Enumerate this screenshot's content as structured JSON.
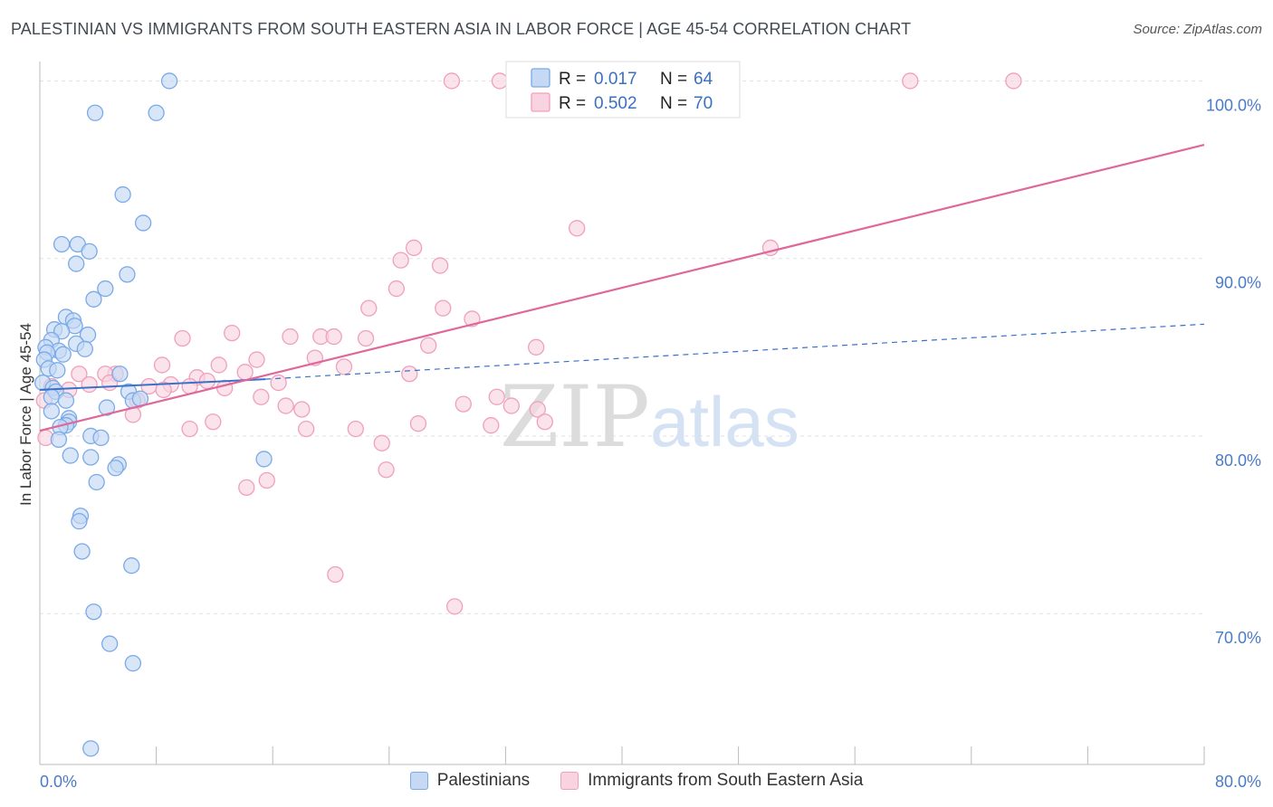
{
  "title": "PALESTINIAN VS IMMIGRANTS FROM SOUTH EASTERN ASIA IN LABOR FORCE | AGE 45-54 CORRELATION CHART",
  "source": "Source: ZipAtlas.com",
  "watermark": {
    "zip": "ZIP",
    "atlas": "atlas"
  },
  "colors": {
    "blue": "#7aaae8",
    "blue_fill": "#c5d9f5",
    "blue_line": "#3a70c8",
    "pink": "#f0a0bb",
    "pink_fill": "#f9d4e0",
    "pink_line": "#e0679a",
    "tick": "#4a7bc8"
  },
  "chart_data": {
    "type": "scatter",
    "xlabel": "",
    "ylabel": "In Labor Force | Age 45-54",
    "xlim": [
      0,
      80
    ],
    "ylim": [
      61.5,
      101.5
    ],
    "x_tick_labels": [
      "0.0%",
      "80.0%"
    ],
    "y_ticks": [
      70,
      80,
      90,
      100
    ],
    "y_tick_labels": [
      "70.0%",
      "80.0%",
      "90.0%",
      "100.0%"
    ],
    "grid": true,
    "legend": {
      "position": "top-center",
      "entries": [
        {
          "series": "Palestinians",
          "r_label": "R =",
          "r": "0.017",
          "n_label": "N =",
          "n": "64"
        },
        {
          "series": "Immigrants from South Eastern Asia",
          "r_label": "R =",
          "r": "0.502",
          "n_label": "N =",
          "n": "70"
        }
      ]
    },
    "series": [
      {
        "name": "Palestinians",
        "color": "#7aaae8",
        "trend": {
          "x": [
            0,
            15.5
          ],
          "y": [
            82.6,
            83.2
          ],
          "dashed_to_x": 80,
          "dashed_to_y": 86.3
        },
        "points": [
          [
            8.9,
            100.0
          ],
          [
            3.8,
            98.2
          ],
          [
            8.0,
            98.2
          ],
          [
            5.7,
            93.6
          ],
          [
            7.1,
            92.0
          ],
          [
            1.5,
            90.8
          ],
          [
            2.6,
            90.8
          ],
          [
            3.4,
            90.4
          ],
          [
            2.5,
            89.7
          ],
          [
            6.0,
            89.1
          ],
          [
            4.5,
            88.3
          ],
          [
            3.7,
            87.7
          ],
          [
            1.8,
            86.7
          ],
          [
            2.3,
            86.5
          ],
          [
            1.0,
            86.0
          ],
          [
            2.4,
            86.2
          ],
          [
            1.5,
            85.9
          ],
          [
            3.3,
            85.7
          ],
          [
            0.8,
            85.4
          ],
          [
            2.5,
            85.2
          ],
          [
            0.4,
            85.0
          ],
          [
            1.3,
            84.8
          ],
          [
            3.1,
            84.9
          ],
          [
            0.5,
            84.7
          ],
          [
            1.6,
            84.6
          ],
          [
            0.3,
            84.3
          ],
          [
            0.6,
            83.8
          ],
          [
            1.2,
            83.7
          ],
          [
            5.5,
            83.5
          ],
          [
            0.2,
            83.0
          ],
          [
            0.9,
            82.7
          ],
          [
            1.1,
            82.5
          ],
          [
            6.1,
            82.5
          ],
          [
            0.8,
            82.2
          ],
          [
            1.8,
            82.0
          ],
          [
            6.4,
            82.0
          ],
          [
            6.9,
            82.1
          ],
          [
            4.6,
            81.6
          ],
          [
            0.8,
            81.4
          ],
          [
            2.0,
            81.0
          ],
          [
            2.0,
            80.8
          ],
          [
            1.8,
            80.6
          ],
          [
            1.4,
            80.5
          ],
          [
            3.5,
            80.0
          ],
          [
            4.2,
            79.9
          ],
          [
            1.3,
            79.8
          ],
          [
            2.1,
            78.9
          ],
          [
            3.5,
            78.8
          ],
          [
            15.4,
            78.7
          ],
          [
            5.4,
            78.4
          ],
          [
            5.2,
            78.2
          ],
          [
            3.9,
            77.4
          ],
          [
            2.8,
            75.5
          ],
          [
            2.7,
            75.2
          ],
          [
            2.9,
            73.5
          ],
          [
            6.3,
            72.7
          ],
          [
            3.7,
            70.1
          ],
          [
            4.8,
            68.3
          ],
          [
            6.4,
            67.2
          ],
          [
            3.5,
            62.4
          ]
        ]
      },
      {
        "name": "Immigrants from South Eastern Asia",
        "color": "#f0a0bb",
        "trend": {
          "x": [
            0,
            80
          ],
          "y": [
            80.3,
            96.4
          ]
        },
        "points": [
          [
            28.3,
            100.0
          ],
          [
            31.6,
            100.0
          ],
          [
            59.8,
            100.0
          ],
          [
            66.9,
            100.0
          ],
          [
            36.9,
            91.7
          ],
          [
            50.2,
            90.6
          ],
          [
            25.7,
            90.6
          ],
          [
            24.8,
            89.9
          ],
          [
            27.5,
            89.6
          ],
          [
            24.5,
            88.3
          ],
          [
            22.6,
            87.2
          ],
          [
            27.7,
            87.2
          ],
          [
            29.7,
            86.6
          ],
          [
            13.2,
            85.8
          ],
          [
            17.2,
            85.6
          ],
          [
            19.3,
            85.6
          ],
          [
            20.2,
            85.6
          ],
          [
            22.4,
            85.5
          ],
          [
            9.8,
            85.5
          ],
          [
            26.7,
            85.1
          ],
          [
            34.1,
            85.0
          ],
          [
            14.9,
            84.3
          ],
          [
            18.9,
            84.4
          ],
          [
            8.4,
            84.0
          ],
          [
            12.3,
            84.0
          ],
          [
            20.9,
            83.9
          ],
          [
            14.1,
            83.6
          ],
          [
            25.4,
            83.5
          ],
          [
            5.2,
            83.5
          ],
          [
            2.7,
            83.5
          ],
          [
            4.5,
            83.5
          ],
          [
            10.8,
            83.3
          ],
          [
            11.5,
            83.1
          ],
          [
            16.4,
            83.0
          ],
          [
            4.8,
            83.0
          ],
          [
            3.4,
            82.9
          ],
          [
            0.8,
            82.8
          ],
          [
            9.0,
            82.9
          ],
          [
            10.3,
            82.8
          ],
          [
            7.5,
            82.8
          ],
          [
            12.7,
            82.7
          ],
          [
            8.5,
            82.6
          ],
          [
            2.0,
            82.6
          ],
          [
            31.4,
            82.2
          ],
          [
            15.2,
            82.2
          ],
          [
            0.3,
            82.0
          ],
          [
            6.7,
            82.0
          ],
          [
            29.1,
            81.8
          ],
          [
            32.4,
            81.7
          ],
          [
            16.9,
            81.7
          ],
          [
            18.0,
            81.5
          ],
          [
            34.2,
            81.5
          ],
          [
            6.4,
            81.2
          ],
          [
            34.7,
            80.8
          ],
          [
            11.9,
            80.8
          ],
          [
            26.0,
            80.7
          ],
          [
            31.0,
            80.6
          ],
          [
            10.3,
            80.4
          ],
          [
            18.3,
            80.4
          ],
          [
            21.7,
            80.4
          ],
          [
            0.4,
            79.9
          ],
          [
            23.5,
            79.6
          ],
          [
            23.8,
            78.1
          ],
          [
            15.6,
            77.5
          ],
          [
            14.2,
            77.1
          ],
          [
            20.3,
            72.2
          ],
          [
            28.5,
            70.4
          ]
        ]
      }
    ]
  },
  "bottom_legend": [
    {
      "label": "Palestinians"
    },
    {
      "label": "Immigrants from South Eastern Asia"
    }
  ]
}
